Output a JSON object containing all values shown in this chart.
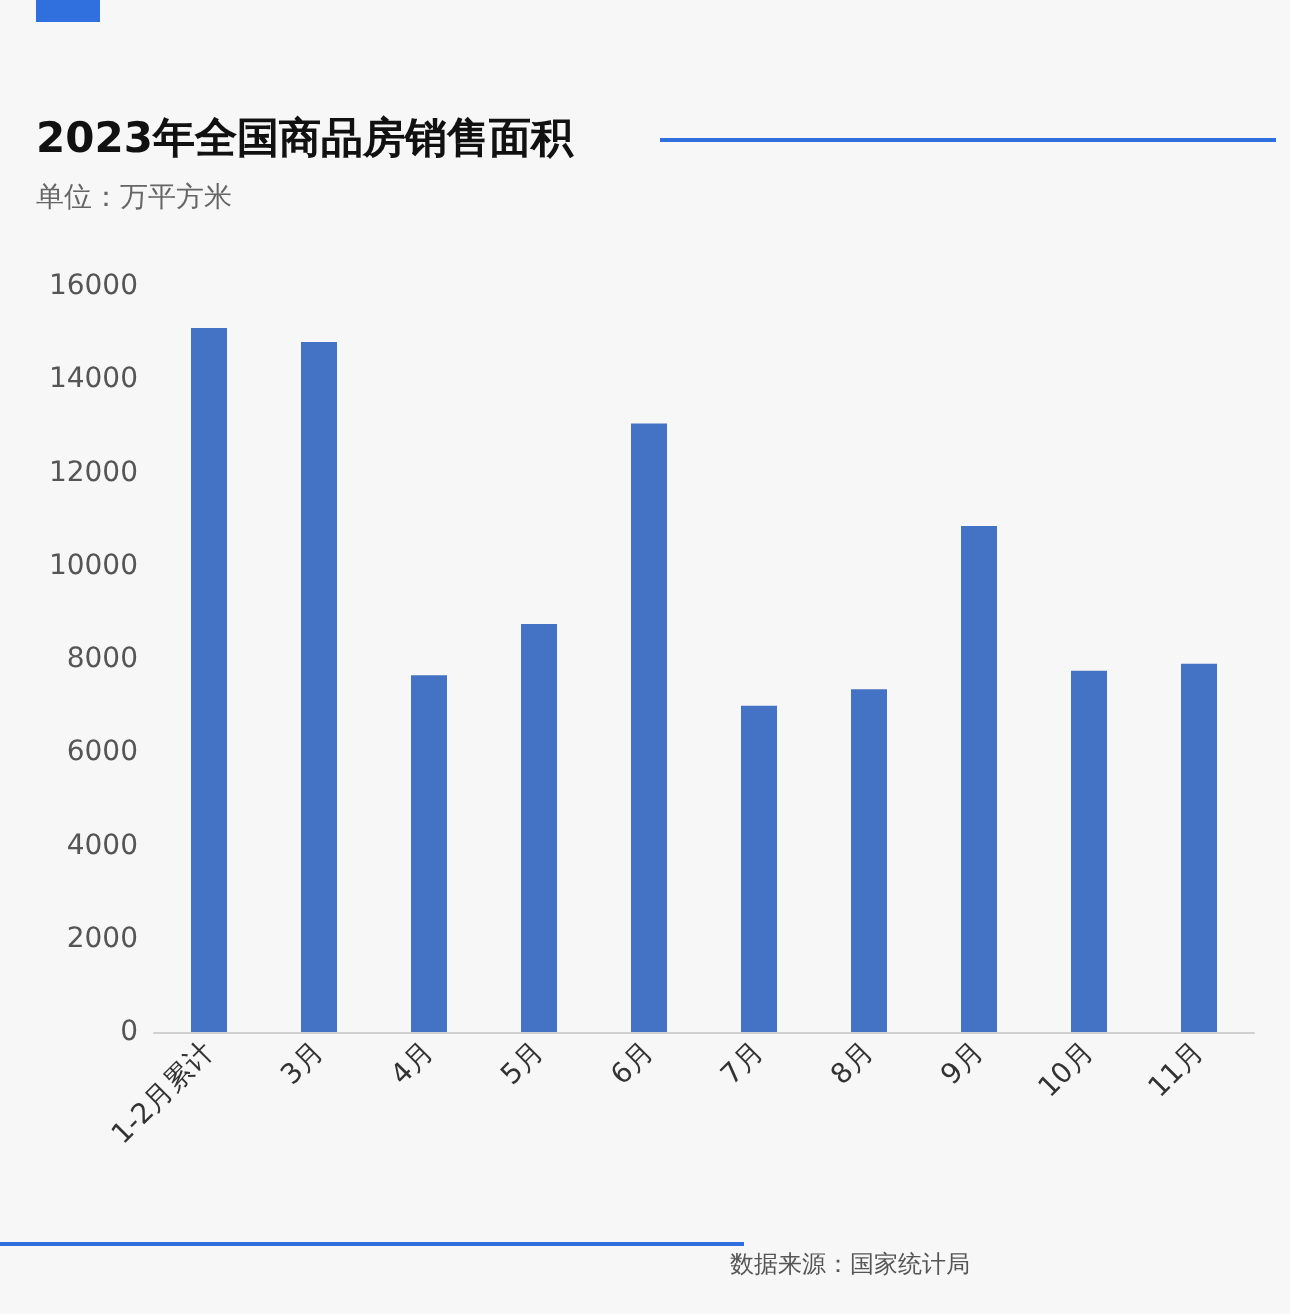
{
  "chart_data": {
    "type": "bar",
    "title": "2023年全国商品房销售面积",
    "subtitle": "单位：万平方米",
    "categories": [
      "1-2月累计",
      "3月",
      "4月",
      "5月",
      "6月",
      "7月",
      "8月",
      "9月",
      "10月",
      "11月"
    ],
    "values": [
      15100,
      14800,
      7650,
      8750,
      13050,
      7000,
      7350,
      10850,
      7750,
      7900
    ],
    "color": "#4472c4",
    "ylim": [
      0,
      16000
    ],
    "yticks": [
      0,
      2000,
      4000,
      6000,
      8000,
      10000,
      12000,
      14000,
      16000
    ],
    "grid": false,
    "annotations": [
      "数据来源：国家统计局"
    ]
  }
}
